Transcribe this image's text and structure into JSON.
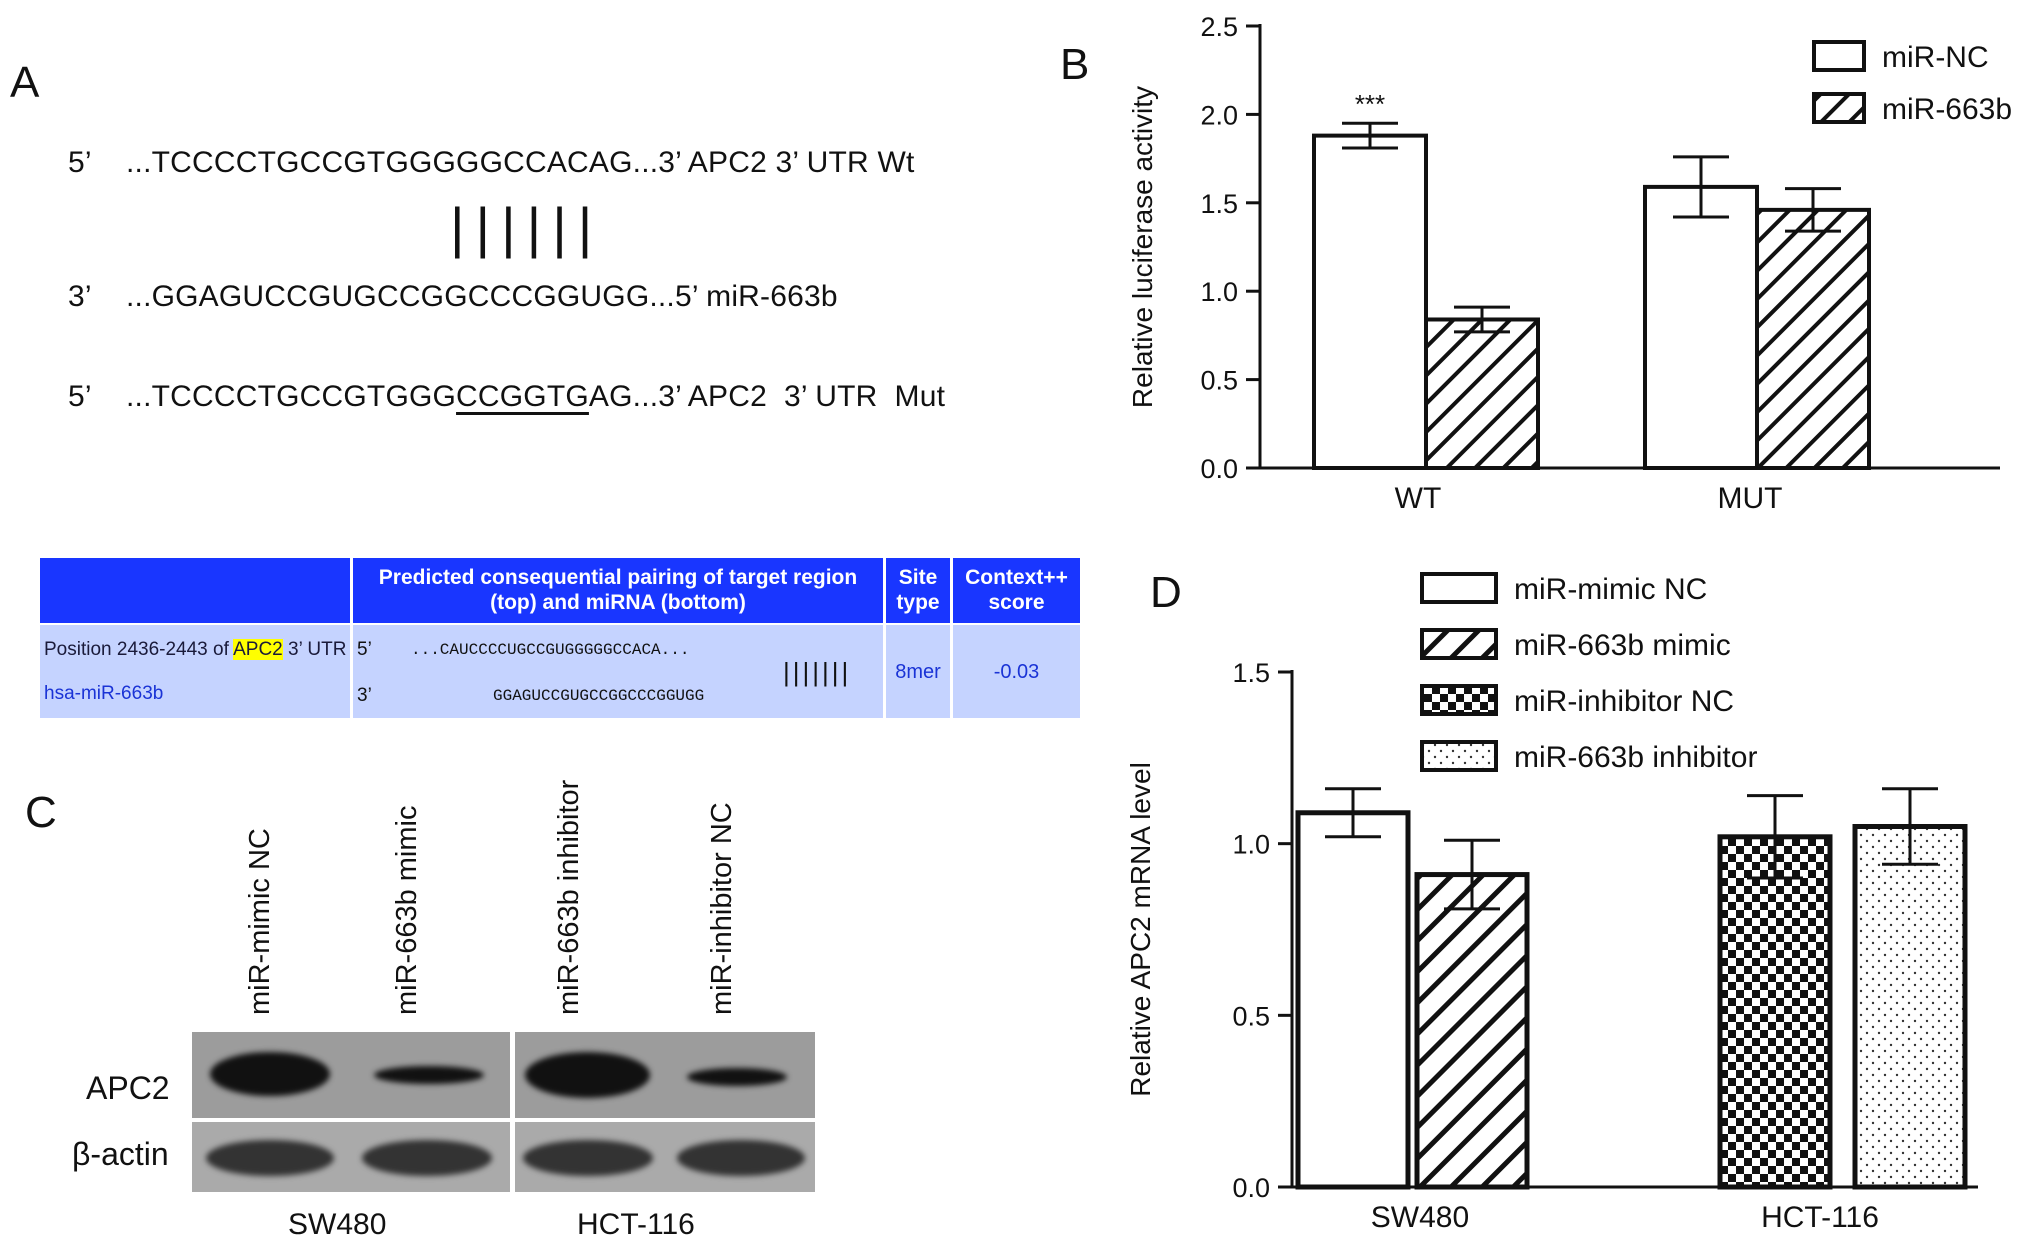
{
  "panels": {
    "a": "A",
    "b": "B",
    "c": "C",
    "d": "D"
  },
  "panel_a": {
    "wt": {
      "end5": "5’",
      "seq": "...TCCCCTGCCGTGGGGGCCACAG...3’ APC2 3’ UTR Wt"
    },
    "pairing": "||||||",
    "mir": {
      "end3": "3’",
      "seq": "...GGAGUCCGUGCCGGCCCGGUGG...5’ miR-663b"
    },
    "mut": {
      "end5": "5’",
      "seq_pre": "...TCCCCTGCCGTGGG",
      "seq_mut": "CCGGTG",
      "seq_post": "AG...3’ APC2  3’ UTR  Mut"
    }
  },
  "targetscan": {
    "header": {
      "pairing": "Predicted consequential pairing of target region (top) and miRNA (bottom)",
      "site": "Site type",
      "score": "Context++ score"
    },
    "row": {
      "position_prefix": "Position 2436-2443 of ",
      "gene": "APC2",
      "position_suffix": " 3’ UTR",
      "mirna": "hsa-miR-663b",
      "end5": "5’",
      "end3": "3’",
      "target_seq": "...CAUCCCCUGCCGUGGGGGCCACA...",
      "mirna_seq": "GGAGUCCGUGCCGGCCCGGUGG",
      "pairing": "|||||||",
      "site_type": "8mer",
      "score": "-0.03"
    },
    "colors": {
      "header": "#1936ff",
      "body": "#c5d3ff",
      "highlight": "#ffff00"
    }
  },
  "western": {
    "lanes": [
      "miR-mimic NC",
      "miR-663b mimic",
      "miR-663b inhibitor",
      "miR-inhibitor NC"
    ],
    "rows": [
      "APC2",
      "β-actin"
    ],
    "cell_lines": [
      "SW480",
      "HCT-116"
    ]
  },
  "chart_data": [
    {
      "type": "bar",
      "panel": "B",
      "categories": [
        "WT",
        "MUT"
      ],
      "series": [
        {
          "name": "miR-NC",
          "values": [
            1.88,
            1.59
          ],
          "errors": [
            0.07,
            0.17
          ],
          "pattern": "open"
        },
        {
          "name": "miR-663b",
          "values": [
            0.84,
            1.46
          ],
          "errors": [
            0.07,
            0.12
          ],
          "pattern": "hatch"
        }
      ],
      "annotations": [
        {
          "text": "***",
          "category": "WT",
          "series": "miR-NC"
        }
      ],
      "ylabel": "Relative luciferase activity",
      "ylim": [
        0,
        2.5
      ],
      "yticks": [
        "0.0",
        "0.5",
        "1.0",
        "1.5",
        "2.0",
        "2.5"
      ],
      "legend_position": "top-right"
    },
    {
      "type": "bar",
      "panel": "D",
      "categories": [
        "SW480",
        "HCT-116"
      ],
      "series": [
        {
          "name": "miR-mimic NC",
          "values": [
            1.09,
            null
          ],
          "errors": [
            0.07,
            null
          ],
          "pattern": "open"
        },
        {
          "name": "miR-663b mimic",
          "values": [
            0.91,
            null
          ],
          "errors": [
            0.1,
            null
          ],
          "pattern": "hatch"
        },
        {
          "name": "miR-inhibitor NC",
          "values": [
            null,
            1.02
          ],
          "errors": [
            null,
            0.12
          ],
          "pattern": "checker"
        },
        {
          "name": "miR-663b inhibitor",
          "values": [
            null,
            1.05
          ],
          "errors": [
            null,
            0.11
          ],
          "pattern": "dots"
        }
      ],
      "ylabel": "Relative APC2 mRNA level",
      "ylim": [
        0,
        1.5
      ],
      "yticks": [
        "0.0",
        "0.5",
        "1.0",
        "1.5"
      ],
      "legend_position": "top"
    }
  ]
}
